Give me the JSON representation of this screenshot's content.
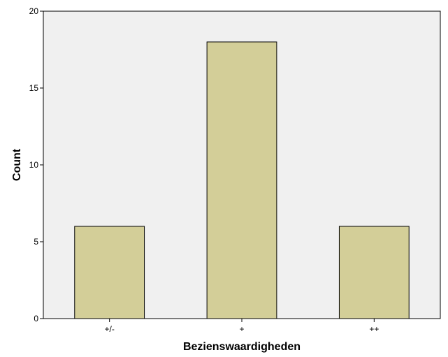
{
  "chart_data": {
    "type": "bar",
    "categories": [
      "+/-",
      "+",
      "++"
    ],
    "values": [
      6,
      18,
      6
    ],
    "xlabel": "Bezienswaardigheden",
    "ylabel": "Count",
    "ylim": [
      0,
      20
    ],
    "yticks": [
      0,
      5,
      10,
      15,
      20
    ],
    "grid": false,
    "colors": {
      "bar_fill": "#d3ce98",
      "bar_stroke": "#000000",
      "plot_background": "#f0f0f0",
      "axis": "#000000"
    }
  }
}
